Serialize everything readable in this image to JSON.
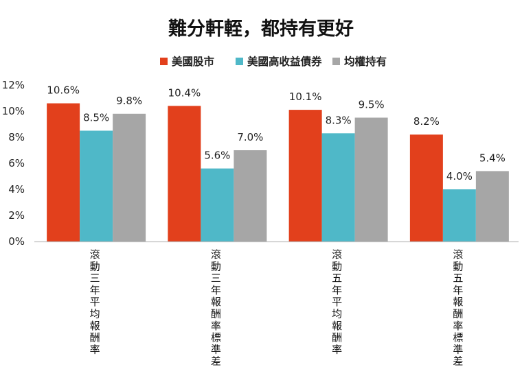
{
  "chart_data": {
    "type": "bar",
    "title": "難分軒輊，都持有更好",
    "categories": [
      "滾動三年平均報酬率",
      "滾動三年報酬率標準差",
      "滾動五年平均報酬率",
      "滾動五年報酬率標準差"
    ],
    "series": [
      {
        "name": "美國股市",
        "color": "#e2401c",
        "values": [
          10.6,
          10.4,
          10.1,
          8.2
        ],
        "labels": [
          "10.6%",
          "10.4%",
          "10.1%",
          "8.2%"
        ]
      },
      {
        "name": "美國高收益債券",
        "color": "#4fb8c8",
        "values": [
          8.5,
          5.6,
          8.3,
          4.0
        ],
        "labels": [
          "8.5%",
          "5.6%",
          "8.3%",
          "4.0%"
        ]
      },
      {
        "name": "均權持有",
        "color": "#a6a6a6",
        "values": [
          9.8,
          7.0,
          9.5,
          5.4
        ],
        "labels": [
          "9.8%",
          "7.0%",
          "9.5%",
          "5.4%"
        ]
      }
    ],
    "ylim": [
      0,
      12
    ],
    "yticks": [
      "0%",
      "2%",
      "4%",
      "6%",
      "8%",
      "10%",
      "12%"
    ],
    "grid": false,
    "legend_position": "top-center"
  }
}
